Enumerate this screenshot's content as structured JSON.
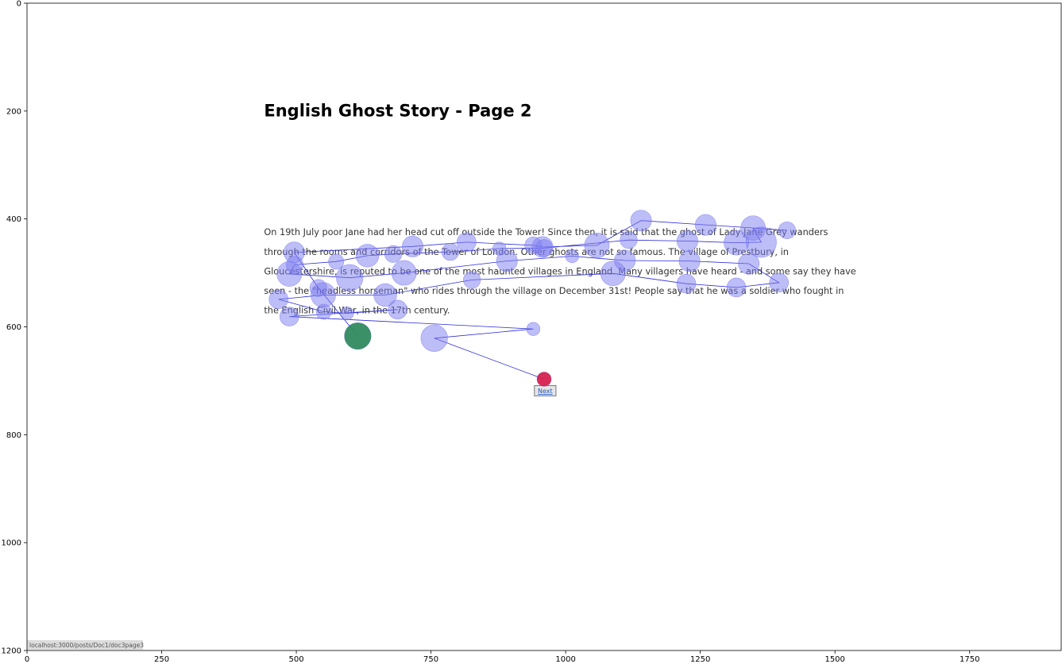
{
  "page": {
    "title": "English Ghost Story - Page 2",
    "paragraph_lines": [
      "On 19th July poor Jane had her head cut off outside the Tower! Since then, it is said that the ghost of Lady Jane Grey wanders",
      "through the rooms and corridors of the Tower of London. Other ghosts are not so famous. The village of Prestbury, in",
      "Gloucestershire, is reputed to be one of the most haunted villages in England. Many villagers have heard - and some say they have",
      "seen - the \"headless horseman\" who rides through the village on December 31st! People say that he was a soldier who fought in",
      "the English Civil War, in the 17th century."
    ],
    "next_label": "Next",
    "status_url": "localhost:3000/posts/Doc1/doc3page3"
  },
  "colors": {
    "fixation_fill": "#7b7bf0",
    "scanpath": "#2a2ad8",
    "start_point": "#2e8b57",
    "end_point": "#dc143c"
  },
  "chart_data": {
    "type": "scatter",
    "title": "",
    "xlabel": "",
    "ylabel": "",
    "xlim": [
      0,
      1920
    ],
    "ylim": [
      1200,
      0
    ],
    "x_ticks": [
      0,
      250,
      500,
      750,
      1000,
      1250,
      1500,
      1750
    ],
    "y_ticks": [
      0,
      200,
      400,
      600,
      800,
      1000,
      1200
    ],
    "grid": false,
    "start": {
      "x": 614,
      "y": 617,
      "size": 28
    },
    "end": {
      "x": 960,
      "y": 697,
      "size": 15
    },
    "fixations": [
      {
        "x": 614,
        "y": 617,
        "size": 28
      },
      {
        "x": 541,
        "y": 528,
        "size": 18
      },
      {
        "x": 496,
        "y": 462,
        "size": 22
      },
      {
        "x": 716,
        "y": 451,
        "size": 22
      },
      {
        "x": 816,
        "y": 443,
        "size": 20
      },
      {
        "x": 940,
        "y": 449,
        "size": 18
      },
      {
        "x": 957,
        "y": 452,
        "size": 22
      },
      {
        "x": 1058,
        "y": 449,
        "size": 26
      },
      {
        "x": 1140,
        "y": 403,
        "size": 22
      },
      {
        "x": 1260,
        "y": 411,
        "size": 22
      },
      {
        "x": 1411,
        "y": 421,
        "size": 18
      },
      {
        "x": 1348,
        "y": 417,
        "size": 26
      },
      {
        "x": 1363,
        "y": 443,
        "size": 32
      },
      {
        "x": 1317,
        "y": 444,
        "size": 26
      },
      {
        "x": 1226,
        "y": 441,
        "size": 22
      },
      {
        "x": 1117,
        "y": 439,
        "size": 18
      },
      {
        "x": 960,
        "y": 454,
        "size": 18
      },
      {
        "x": 877,
        "y": 455,
        "size": 14
      },
      {
        "x": 786,
        "y": 461,
        "size": 18
      },
      {
        "x": 680,
        "y": 465,
        "size": 18
      },
      {
        "x": 632,
        "y": 468,
        "size": 24
      },
      {
        "x": 574,
        "y": 479,
        "size": 16
      },
      {
        "x": 497,
        "y": 485,
        "size": 18
      },
      {
        "x": 487,
        "y": 502,
        "size": 26
      },
      {
        "x": 599,
        "y": 509,
        "size": 28
      },
      {
        "x": 700,
        "y": 500,
        "size": 26
      },
      {
        "x": 891,
        "y": 478,
        "size": 22
      },
      {
        "x": 1012,
        "y": 469,
        "size": 14
      },
      {
        "x": 1110,
        "y": 477,
        "size": 22
      },
      {
        "x": 1230,
        "y": 478,
        "size": 22
      },
      {
        "x": 1340,
        "y": 483,
        "size": 22
      },
      {
        "x": 1396,
        "y": 518,
        "size": 20
      },
      {
        "x": 1317,
        "y": 527,
        "size": 20
      },
      {
        "x": 1224,
        "y": 520,
        "size": 20
      },
      {
        "x": 1088,
        "y": 501,
        "size": 26
      },
      {
        "x": 826,
        "y": 513,
        "size": 18
      },
      {
        "x": 665,
        "y": 541,
        "size": 24
      },
      {
        "x": 550,
        "y": 541,
        "size": 26
      },
      {
        "x": 467,
        "y": 549,
        "size": 20
      },
      {
        "x": 551,
        "y": 572,
        "size": 16
      },
      {
        "x": 594,
        "y": 575,
        "size": 14
      },
      {
        "x": 688,
        "y": 568,
        "size": 20
      },
      {
        "x": 487,
        "y": 581,
        "size": 20
      },
      {
        "x": 940,
        "y": 604,
        "size": 14
      },
      {
        "x": 756,
        "y": 621,
        "size": 28
      },
      {
        "x": 960,
        "y": 697,
        "size": 15
      }
    ]
  }
}
